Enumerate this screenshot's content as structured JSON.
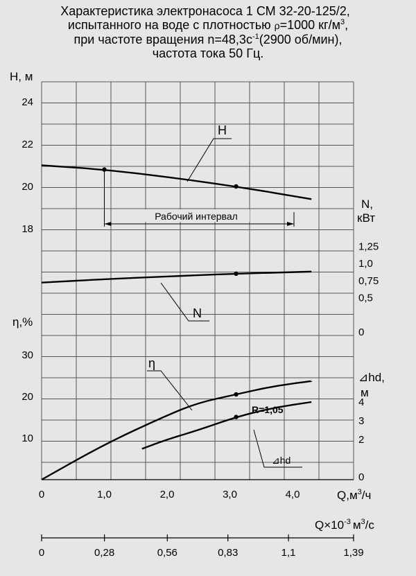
{
  "title": {
    "line1": "Характеристика электронасоса 1 СМ 32-20-125/2,",
    "line2a": "испытанного на воде с плотностью ",
    "line2_rho": "ρ",
    "line2b": "=1000 кг/м",
    "line2_sup": "3",
    "line2c": ",",
    "line3a": "при частоте вращения n=48,3с",
    "line3_sup": "-1",
    "line3b": "(2900 об/мин),",
    "line4": "частота тока 50 Гц."
  },
  "colors": {
    "background": "#e6e6e6",
    "ink": "#000000"
  },
  "chart_data": {
    "type": "line",
    "grid": true,
    "x_axis": {
      "label": "Q,м",
      "label_sup": "3",
      "label_end": "/ч",
      "range": [
        0,
        4.5
      ],
      "ticks": [
        0,
        1,
        2,
        3,
        4
      ],
      "tick_labels": [
        "0",
        "1,0",
        "2,0",
        "3,0",
        "4,0"
      ]
    },
    "x2_axis": {
      "label": "Q×10",
      "label_sup": "-3",
      "label_end": "м",
      "label_sup2": "3",
      "label_end2": "/с",
      "ticks": [
        0,
        0.28,
        0.56,
        0.83,
        1.1,
        1.39
      ],
      "tick_labels": [
        "0",
        "0,28",
        "0,56",
        "0,83",
        "1,1",
        "1,39"
      ]
    },
    "axes": {
      "H": {
        "label": "Н, м",
        "range": [
          17,
          25
        ],
        "ticks": [
          18,
          20,
          22,
          24
        ],
        "tick_labels": [
          "18",
          "20",
          "22",
          "24"
        ]
      },
      "N": {
        "label1": "N,",
        "label2": "кВт",
        "range": [
          0,
          1.5
        ],
        "ticks": [
          0,
          0.5,
          0.75,
          1.0,
          1.25
        ],
        "tick_labels": [
          "0",
          "0,5",
          "0,75",
          "1,0",
          "1,25"
        ]
      },
      "eta": {
        "label": "η,%",
        "range": [
          0,
          35
        ],
        "ticks": [
          10,
          20,
          30
        ],
        "tick_labels": [
          "10",
          "20",
          "30"
        ]
      },
      "dh": {
        "label1": "⊿hd,",
        "label2": "м",
        "range": [
          0,
          5
        ],
        "ticks": [
          0,
          2,
          3,
          4
        ],
        "tick_labels": [
          "0",
          "2",
          "3",
          "4"
        ]
      }
    },
    "series": [
      {
        "name": "Н",
        "axis": "H",
        "x": [
          0,
          1.0,
          2.0,
          3.1,
          4.3
        ],
        "y": [
          21.0,
          20.8,
          20.45,
          20.0,
          19.4
        ],
        "marker_at": [
          1.0,
          3.1
        ]
      },
      {
        "name": "N",
        "axis": "N",
        "x": [
          0,
          1.0,
          2.0,
          3.1,
          4.3
        ],
        "y": [
          0.72,
          0.77,
          0.81,
          0.85,
          0.88
        ],
        "marker_at": [
          3.1
        ]
      },
      {
        "name": "η",
        "axis": "eta",
        "x": [
          0,
          1.0,
          2.0,
          2.5,
          3.1,
          3.7,
          4.3
        ],
        "y": [
          0,
          8.5,
          15.5,
          18.5,
          20.5,
          22.5,
          23.7
        ],
        "marker_at": [
          3.1
        ]
      },
      {
        "name": "⊿hd",
        "axis": "dh",
        "x": [
          1.6,
          2.0,
          2.5,
          3.1,
          3.7,
          4.3
        ],
        "y": [
          1.5,
          2.0,
          2.5,
          3.2,
          3.7,
          4.0
        ],
        "marker_at": [
          3.1
        ]
      }
    ],
    "annotations": {
      "operating_range_label": "Рабочий интервал",
      "operating_range": [
        1.05,
        4.0
      ],
      "curve_label_H": "Н",
      "curve_label_N": "N",
      "curve_label_eta": "η",
      "curve_label_dh": "⊿hd",
      "R_label": "R=1,05"
    }
  }
}
